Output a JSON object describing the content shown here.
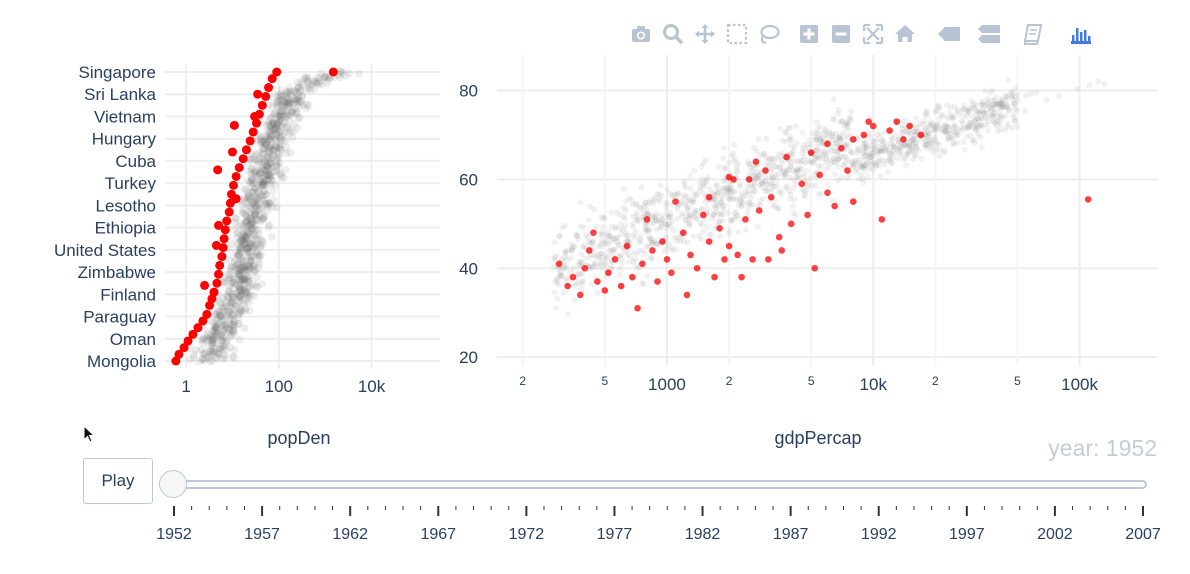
{
  "toolbar": {
    "buttons": [
      {
        "name": "camera-icon"
      },
      {
        "name": "zoom-icon"
      },
      {
        "name": "pan-icon"
      },
      {
        "name": "box-select-icon"
      },
      {
        "name": "lasso-icon"
      },
      {
        "name": "zoom-in-icon"
      },
      {
        "name": "zoom-out-icon"
      },
      {
        "name": "autoscale-icon"
      },
      {
        "name": "home-icon"
      },
      {
        "name": "hover-closest-icon"
      },
      {
        "name": "hover-compare-icon"
      },
      {
        "name": "notebook-icon"
      },
      {
        "name": "plotly-logo-icon"
      }
    ],
    "icon_color": "#b8c3d3",
    "logo_color": "#447adb"
  },
  "chart_data": [
    {
      "type": "scatter",
      "xlabel": "popDen",
      "x_scale": "log",
      "xlim": [
        0.35,
        300000
      ],
      "x_ticks": [
        {
          "value": 1,
          "label": "1"
        },
        {
          "value": 100,
          "label": "100"
        },
        {
          "value": 10000,
          "label": "10k"
        }
      ],
      "categories": [
        "Mongolia",
        "Oman",
        "Paraguay",
        "Finland",
        "Zimbabwe",
        "United States",
        "Ethiopia",
        "Lesotho",
        "Turkey",
        "Cuba",
        "Hungary",
        "Vietnam",
        "Sri Lanka",
        "Singapore"
      ],
      "highlight_color": "#ff0000",
      "background_color": "#555555",
      "highlight_series": {
        "name": "1952",
        "points": [
          {
            "y": 0.0,
            "x": 0.6
          },
          {
            "y": 0.3,
            "x": 0.7
          },
          {
            "y": 0.6,
            "x": 0.9
          },
          {
            "y": 0.9,
            "x": 1.1
          },
          {
            "y": 1.2,
            "x": 1.4
          },
          {
            "y": 1.5,
            "x": 1.8
          },
          {
            "y": 1.8,
            "x": 2.3
          },
          {
            "y": 2.1,
            "x": 2.8
          },
          {
            "y": 2.5,
            "x": 3.2
          },
          {
            "y": 2.8,
            "x": 3.6
          },
          {
            "y": 3.1,
            "x": 4.0
          },
          {
            "y": 3.5,
            "x": 4.6
          },
          {
            "y": 3.9,
            "x": 5.0
          },
          {
            "y": 4.3,
            "x": 5.3
          },
          {
            "y": 4.7,
            "x": 5.9
          },
          {
            "y": 5.1,
            "x": 6.3
          },
          {
            "y": 5.5,
            "x": 6.6
          },
          {
            "y": 5.9,
            "x": 7.0
          },
          {
            "y": 6.3,
            "x": 7.5
          },
          {
            "y": 6.7,
            "x": 8.5
          },
          {
            "y": 7.1,
            "x": 9.0
          },
          {
            "y": 7.5,
            "x": 9.5
          },
          {
            "y": 7.9,
            "x": 10.5
          },
          {
            "y": 8.3,
            "x": 12
          },
          {
            "y": 8.7,
            "x": 14
          },
          {
            "y": 9.1,
            "x": 17
          },
          {
            "y": 9.5,
            "x": 20
          },
          {
            "y": 9.9,
            "x": 24
          },
          {
            "y": 10.3,
            "x": 28
          },
          {
            "y": 10.7,
            "x": 33
          },
          {
            "y": 11.1,
            "x": 38
          },
          {
            "y": 11.5,
            "x": 44
          },
          {
            "y": 11.9,
            "x": 52
          },
          {
            "y": 12.3,
            "x": 60
          },
          {
            "y": 12.7,
            "x": 72
          },
          {
            "y": 13.0,
            "x": 90
          },
          {
            "y": 13.0,
            "x": 1500
          },
          {
            "y": 3.4,
            "x": 2.5
          },
          {
            "y": 5.2,
            "x": 4.5
          },
          {
            "y": 8.6,
            "x": 4.8
          },
          {
            "y": 10.6,
            "x": 11
          },
          {
            "y": 9.4,
            "x": 10
          },
          {
            "y": 12.0,
            "x": 35
          },
          {
            "y": 11.0,
            "x": 30
          },
          {
            "y": 6.1,
            "x": 5.0
          },
          {
            "y": 7.3,
            "x": 12
          }
        ]
      },
      "background_trend": [
        {
          "y": 0.0,
          "x": 3
        },
        {
          "y": 1.0,
          "x": 5
        },
        {
          "y": 2.0,
          "x": 9
        },
        {
          "y": 3.0,
          "x": 12
        },
        {
          "y": 4.0,
          "x": 16
        },
        {
          "y": 5.0,
          "x": 20
        },
        {
          "y": 6.0,
          "x": 25
        },
        {
          "y": 7.0,
          "x": 32
        },
        {
          "y": 8.0,
          "x": 40
        },
        {
          "y": 9.0,
          "x": 55
        },
        {
          "y": 10.0,
          "x": 75
        },
        {
          "y": 11.0,
          "x": 110
        },
        {
          "y": 12.0,
          "x": 170
        },
        {
          "y": 13.0,
          "x": 1200
        }
      ]
    },
    {
      "type": "scatter",
      "xlabel": "gdpPercap",
      "x_scale": "log",
      "xlim": [
        150,
        240000
      ],
      "ylim": [
        18,
        88
      ],
      "x_ticks": [
        {
          "value": 200,
          "label": "2",
          "minor": true
        },
        {
          "value": 500,
          "label": "5",
          "minor": true
        },
        {
          "value": 1000,
          "label": "1000"
        },
        {
          "value": 2000,
          "label": "2",
          "minor": true
        },
        {
          "value": 5000,
          "label": "5",
          "minor": true
        },
        {
          "value": 10000,
          "label": "10k"
        },
        {
          "value": 20000,
          "label": "2",
          "minor": true
        },
        {
          "value": 50000,
          "label": "5",
          "minor": true
        },
        {
          "value": 100000,
          "label": "100k"
        }
      ],
      "y_ticks": [
        20,
        40,
        60,
        80
      ],
      "highlight_color": "#ff0000",
      "background_color": "#888888",
      "highlight_series": {
        "name": "1952",
        "points": [
          {
            "x": 300,
            "y": 41
          },
          {
            "x": 330,
            "y": 36
          },
          {
            "x": 350,
            "y": 38
          },
          {
            "x": 380,
            "y": 34
          },
          {
            "x": 400,
            "y": 40
          },
          {
            "x": 420,
            "y": 44
          },
          {
            "x": 440,
            "y": 48
          },
          {
            "x": 460,
            "y": 37
          },
          {
            "x": 500,
            "y": 35
          },
          {
            "x": 520,
            "y": 39
          },
          {
            "x": 560,
            "y": 42
          },
          {
            "x": 600,
            "y": 36
          },
          {
            "x": 640,
            "y": 45
          },
          {
            "x": 680,
            "y": 38
          },
          {
            "x": 720,
            "y": 31
          },
          {
            "x": 760,
            "y": 41
          },
          {
            "x": 800,
            "y": 51
          },
          {
            "x": 850,
            "y": 44
          },
          {
            "x": 900,
            "y": 37
          },
          {
            "x": 950,
            "y": 46
          },
          {
            "x": 1000,
            "y": 42
          },
          {
            "x": 1050,
            "y": 39
          },
          {
            "x": 1100,
            "y": 55
          },
          {
            "x": 1200,
            "y": 48
          },
          {
            "x": 1300,
            "y": 43
          },
          {
            "x": 1400,
            "y": 40
          },
          {
            "x": 1500,
            "y": 52
          },
          {
            "x": 1600,
            "y": 46
          },
          {
            "x": 1700,
            "y": 38
          },
          {
            "x": 1800,
            "y": 49
          },
          {
            "x": 1900,
            "y": 42
          },
          {
            "x": 2000,
            "y": 45
          },
          {
            "x": 2100,
            "y": 60
          },
          {
            "x": 2200,
            "y": 43
          },
          {
            "x": 2400,
            "y": 51
          },
          {
            "x": 2500,
            "y": 60
          },
          {
            "x": 2600,
            "y": 42
          },
          {
            "x": 2800,
            "y": 53
          },
          {
            "x": 3000,
            "y": 62
          },
          {
            "x": 3200,
            "y": 56
          },
          {
            "x": 3500,
            "y": 47
          },
          {
            "x": 3800,
            "y": 65
          },
          {
            "x": 4000,
            "y": 50
          },
          {
            "x": 4500,
            "y": 59
          },
          {
            "x": 5000,
            "y": 66
          },
          {
            "x": 5500,
            "y": 61
          },
          {
            "x": 6000,
            "y": 68
          },
          {
            "x": 6500,
            "y": 54
          },
          {
            "x": 7000,
            "y": 67
          },
          {
            "x": 8000,
            "y": 69
          },
          {
            "x": 9000,
            "y": 70
          },
          {
            "x": 10000,
            "y": 72
          },
          {
            "x": 11000,
            "y": 51
          },
          {
            "x": 12000,
            "y": 71
          },
          {
            "x": 13000,
            "y": 73
          },
          {
            "x": 14000,
            "y": 69
          },
          {
            "x": 15000,
            "y": 72
          },
          {
            "x": 17000,
            "y": 70
          },
          {
            "x": 8000,
            "y": 55
          },
          {
            "x": 6000,
            "y": 57
          },
          {
            "x": 4800,
            "y": 52
          },
          {
            "x": 3600,
            "y": 44
          },
          {
            "x": 2700,
            "y": 64
          },
          {
            "x": 1600,
            "y": 56
          },
          {
            "x": 1250,
            "y": 34
          },
          {
            "x": 2300,
            "y": 38
          },
          {
            "x": 3100,
            "y": 42
          },
          {
            "x": 5200,
            "y": 40
          },
          {
            "x": 7500,
            "y": 62
          },
          {
            "x": 9500,
            "y": 73
          },
          {
            "x": 110000,
            "y": 55.5
          },
          {
            "x": 2000,
            "y": 60.5
          }
        ]
      }
    }
  ],
  "animation": {
    "play_label": "Play",
    "current_label": "year: 1952",
    "years": [
      "1952",
      "1957",
      "1962",
      "1967",
      "1972",
      "1977",
      "1982",
      "1987",
      "1992",
      "1997",
      "2002",
      "2007"
    ],
    "current_index": 0
  }
}
